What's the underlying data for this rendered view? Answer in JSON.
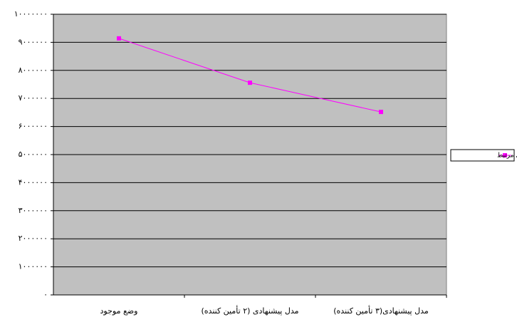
{
  "chart_data": {
    "type": "line",
    "categories": [
      "وضع موجود",
      "مدل پيشنهادی (۲ تأمين کننده)",
      "مدل پيشنهادی(۳ تأمين کننده)"
    ],
    "series": [
      {
        "name": "هزينه هاي مرتبط",
        "color": "#ff00ff",
        "values": [
          9140000,
          7560000,
          6520000
        ]
      }
    ],
    "ylim": [
      0,
      10000000
    ],
    "yticks": [
      {
        "value": 0,
        "label": "۰"
      },
      {
        "value": 1000000,
        "label": "۱۰۰۰۰۰۰"
      },
      {
        "value": 2000000,
        "label": "۲۰۰۰۰۰۰"
      },
      {
        "value": 3000000,
        "label": "۳۰۰۰۰۰۰"
      },
      {
        "value": 4000000,
        "label": "۴۰۰۰۰۰۰"
      },
      {
        "value": 5000000,
        "label": "۵۰۰۰۰۰۰"
      },
      {
        "value": 6000000,
        "label": "۶۰۰۰۰۰۰"
      },
      {
        "value": 7000000,
        "label": "۷۰۰۰۰۰۰"
      },
      {
        "value": 8000000,
        "label": "۸۰۰۰۰۰۰"
      },
      {
        "value": 9000000,
        "label": "۹۰۰۰۰۰۰"
      },
      {
        "value": 10000000,
        "label": "۱۰۰۰۰۰۰۰"
      }
    ],
    "grid": true,
    "plot_background": "#c0c0c0",
    "legend": "right"
  }
}
